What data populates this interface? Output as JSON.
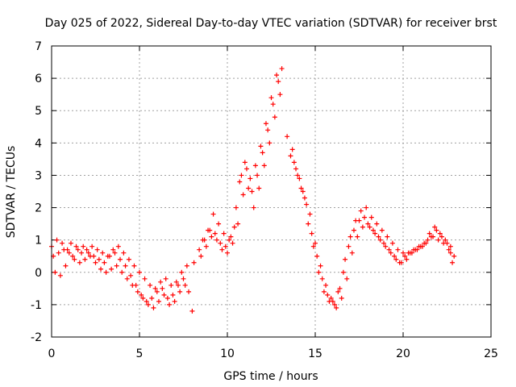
{
  "chart_data": {
    "type": "scatter",
    "title": "Day 025 of 2022, Sidereal Day-to-day VTEC variation (SDTVAR) for receiver brst",
    "xlabel": "GPS time / hours",
    "ylabel": "SDTVAR / TECUs",
    "xlim": [
      0,
      25
    ],
    "ylim": [
      -2,
      7
    ],
    "xticks": [
      "0",
      "5",
      "10",
      "15",
      "20",
      "25"
    ],
    "yticks": [
      "-2",
      "-1",
      "0",
      "1",
      "2",
      "3",
      "4",
      "5",
      "6",
      "7"
    ],
    "grid": true,
    "marker": "plus",
    "color": "#ff0000",
    "series": [
      {
        "name": "SDTVAR",
        "x": [
          0.0,
          0.3,
          0.6,
          0.9,
          1.2,
          1.5,
          1.8,
          2.1,
          2.4,
          2.7,
          3.0,
          3.3,
          3.6,
          3.9,
          4.2,
          4.5,
          4.8,
          5.1,
          5.4,
          5.7,
          6.0,
          6.3,
          6.6,
          6.9,
          7.2,
          7.5,
          7.8,
          8.1,
          8.4,
          8.7,
          9.0,
          9.3,
          9.6,
          9.9,
          10.2,
          10.5,
          10.8,
          11.1,
          11.4,
          11.7,
          12.0,
          12.3,
          12.6,
          12.9,
          13.1,
          13.4,
          13.7,
          14.0,
          14.3,
          14.6,
          14.9,
          15.2,
          15.5,
          15.8,
          16.1,
          16.4,
          16.7,
          17.0,
          17.3,
          17.6,
          17.9,
          18.2,
          18.5,
          18.8,
          19.1,
          19.4,
          19.7,
          20.0,
          20.3,
          20.6,
          20.9,
          21.2,
          21.5,
          21.8,
          22.1,
          22.4,
          22.7,
          22.9
        ],
        "y": [
          0.8,
          1.0,
          0.9,
          0.7,
          0.5,
          0.7,
          0.8,
          0.6,
          0.5,
          0.4,
          0.3,
          0.5,
          0.6,
          0.4,
          0.2,
          -0.1,
          -0.4,
          -0.7,
          -0.9,
          -0.8,
          -0.6,
          -0.5,
          -0.8,
          -0.7,
          -0.4,
          -0.2,
          -0.6,
          0.3,
          0.7,
          1.0,
          1.3,
          1.2,
          0.9,
          0.8,
          1.1,
          2.0,
          3.0,
          3.2,
          2.5,
          3.0,
          3.7,
          4.4,
          5.2,
          5.9,
          6.3,
          4.2,
          3.8,
          3.0,
          2.5,
          1.5,
          0.8,
          0.0,
          -0.6,
          -0.9,
          -1.0,
          -0.5,
          0.4,
          1.1,
          1.6,
          1.9,
          2.0,
          1.7,
          1.5,
          1.3,
          1.1,
          0.9,
          0.7,
          0.6,
          0.6,
          0.7,
          0.8,
          0.9,
          1.2,
          1.4,
          1.2,
          1.0,
          0.8,
          0.5
        ]
      },
      {
        "name": "SDTVAR",
        "x": [
          0.1,
          0.4,
          0.7,
          1.0,
          1.3,
          1.6,
          1.9,
          2.2,
          2.5,
          2.8,
          3.1,
          3.4,
          3.7,
          4.0,
          4.3,
          4.6,
          4.9,
          5.2,
          5.5,
          5.8,
          6.1,
          6.4,
          6.7,
          7.0,
          7.3,
          7.6,
          8.5,
          8.8,
          9.1,
          9.4,
          9.7,
          10.0,
          10.3,
          10.6,
          10.9,
          11.2,
          11.5,
          11.8,
          12.1,
          12.4,
          12.7,
          13.0,
          13.6,
          13.9,
          14.2,
          14.5,
          14.8,
          15.1,
          15.4,
          15.7,
          16.0,
          16.3,
          16.6,
          16.9,
          17.2,
          17.5,
          17.8,
          18.1,
          18.4,
          18.7,
          19.0,
          19.3,
          19.6,
          19.9,
          20.2,
          20.5,
          20.8,
          21.1,
          21.4,
          21.7,
          22.0,
          22.3,
          22.6,
          22.8
        ],
        "y": [
          0.5,
          0.6,
          0.7,
          0.6,
          0.4,
          0.3,
          0.4,
          0.5,
          0.3,
          0.1,
          0.0,
          0.1,
          0.2,
          0.0,
          -0.2,
          -0.4,
          -0.6,
          -0.8,
          -1.0,
          -1.1,
          -0.9,
          -0.7,
          -1.0,
          -0.9,
          -0.6,
          -0.4,
          0.5,
          0.8,
          1.1,
          1.0,
          0.7,
          0.6,
          0.9,
          1.5,
          2.4,
          2.6,
          2.0,
          2.6,
          3.3,
          4.0,
          4.8,
          5.5,
          3.6,
          3.2,
          2.6,
          2.1,
          1.2,
          0.5,
          -0.2,
          -0.7,
          -0.9,
          -0.6,
          0.0,
          0.8,
          1.3,
          1.6,
          1.7,
          1.4,
          1.2,
          1.0,
          0.8,
          0.6,
          0.4,
          0.3,
          0.4,
          0.6,
          0.7,
          0.8,
          1.0,
          1.1,
          1.0,
          0.9,
          0.7,
          0.3
        ]
      },
      {
        "name": "SDTVAR",
        "x": [
          0.2,
          0.5,
          0.8,
          1.1,
          1.4,
          1.7,
          2.0,
          2.3,
          2.6,
          2.9,
          3.2,
          3.5,
          3.8,
          4.1,
          4.4,
          4.7,
          5.0,
          5.3,
          5.6,
          5.9,
          6.2,
          6.5,
          6.8,
          7.1,
          7.4,
          7.7,
          8.0,
          8.6,
          8.9,
          9.2,
          9.5,
          9.8,
          10.1,
          10.4,
          10.7,
          11.0,
          11.3,
          11.6,
          11.9,
          12.2,
          12.5,
          12.8,
          13.8,
          14.1,
          14.4,
          14.7,
          15.0,
          15.3,
          15.6,
          15.9,
          16.2,
          16.5,
          16.8,
          17.1,
          17.4,
          17.7,
          18.0,
          18.3,
          18.6,
          18.9,
          19.2,
          19.5,
          19.8,
          20.1,
          20.4,
          20.7,
          21.0,
          21.3,
          21.6,
          21.9,
          22.2,
          22.5,
          22.7
        ],
        "y": [
          0.0,
          -0.1,
          0.2,
          0.9,
          0.8,
          0.6,
          0.7,
          0.8,
          0.7,
          0.6,
          0.5,
          0.7,
          0.8,
          0.6,
          0.4,
          0.2,
          0.0,
          -0.2,
          -0.4,
          -0.5,
          -0.3,
          -0.2,
          -0.4,
          -0.3,
          0.0,
          0.2,
          -1.2,
          1.0,
          1.3,
          1.8,
          1.5,
          1.2,
          1.0,
          1.4,
          2.8,
          3.4,
          2.9,
          3.3,
          3.9,
          4.6,
          5.4,
          6.1,
          3.4,
          2.9,
          2.3,
          1.8,
          0.9,
          0.2,
          -0.4,
          -0.8,
          -1.1,
          -0.8,
          -0.2,
          0.6,
          1.1,
          1.4,
          1.5,
          1.3,
          1.1,
          0.9,
          0.7,
          0.5,
          0.3,
          0.5,
          0.6,
          0.7,
          0.8,
          0.9,
          1.1,
          1.3,
          1.1,
          0.9,
          0.6
        ]
      }
    ]
  }
}
